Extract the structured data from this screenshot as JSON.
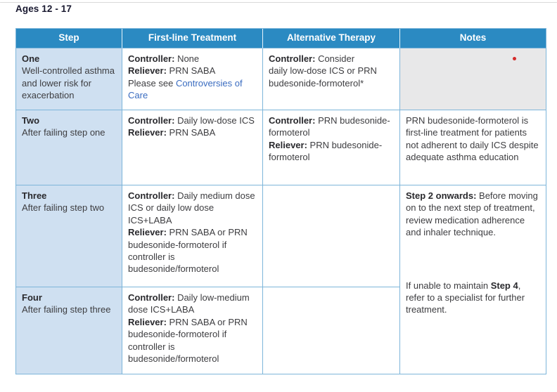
{
  "colors": {
    "header_bg": "#2b8ac2",
    "header_text": "#ffffff",
    "header_divider": "#e8f4fa",
    "step_col_bg": "#cfe0f1",
    "notes_empty_bg": "#e8e8e9",
    "border": "#7db5da",
    "text": "#3d3d40",
    "bold_text": "#29292d",
    "link": "#3a6cc0",
    "marker_red": "#d42a2a",
    "title_text": "#191930",
    "top_edge_line": "#d9d9d9"
  },
  "page": {
    "title": "Ages 12 - 17"
  },
  "table": {
    "headers": [
      "Step",
      "First-line Treatment",
      "Alternative Therapy",
      "Notes"
    ],
    "rows": [
      {
        "step_name": "One",
        "step_desc": "Well-controlled asthma and lower risk for exacerbation",
        "first_line": [
          {
            "t": "Controller:",
            "b": true
          },
          {
            "t": " None"
          },
          {
            "t": "Reliever:",
            "b": true,
            "br": true
          },
          {
            "t": " PRN SABA"
          },
          {
            "t": "Please see ",
            "br": true
          },
          {
            "t": "Controversies of Care",
            "link": true,
            "name": "controversies-of-care-link"
          }
        ],
        "alternative": [
          {
            "t": "Controller:",
            "b": true
          },
          {
            "t": " Consider"
          },
          {
            "t": "daily low-dose ICS or PRN budesonide-formoterol*",
            "br": true
          }
        ],
        "notes": ""
      },
      {
        "step_name": "Two",
        "step_desc": "After failing step one",
        "first_line": [
          {
            "t": "Controller:",
            "b": true
          },
          {
            "t": " Daily low-dose ICS"
          },
          {
            "t": "Reliever:",
            "b": true,
            "br": true
          },
          {
            "t": " PRN SABA"
          }
        ],
        "alternative": [
          {
            "t": "Controller:",
            "b": true
          },
          {
            "t": " PRN budesonide-formoterol"
          },
          {
            "t": "Reliever:",
            "b": true,
            "br": true
          },
          {
            "t": " PRN budesonide-formoterol"
          }
        ],
        "notes": "PRN budesonide-formoterol is first-line treatment for patients not adherent to daily ICS despite adequate asthma education"
      },
      {
        "step_name": "Three",
        "step_desc": "After failing step two",
        "first_line": [
          {
            "t": "Controller:",
            "b": true
          },
          {
            "t": " Daily medium dose ICS or daily low dose ICS+LABA"
          },
          {
            "t": "Reliever:",
            "b": true,
            "br": true
          },
          {
            "t": " PRN SABA or PRN budesonide-formoterol if controller is budesonide/formoterol"
          }
        ],
        "alternative": [],
        "notes_p1": [
          {
            "t": "Step 2 onwards:",
            "b": true
          },
          {
            "t": " Before moving on to the next step of treatment, review medication adherence and inhaler technique."
          }
        ],
        "notes_p2": [
          {
            "t": "If unable to maintain "
          },
          {
            "t": "Step 4",
            "b": true
          },
          {
            "t": ", refer to a specialist for further treatment."
          }
        ]
      },
      {
        "step_name": "Four",
        "step_desc": "After failing step three",
        "first_line": [
          {
            "t": "Controller:",
            "b": true
          },
          {
            "t": " Daily low-medium dose ICS+LABA"
          },
          {
            "t": "Reliever:",
            "b": true,
            "br": true
          },
          {
            "t": " PRN SABA or PRN budesonide-formoterol if controller is budesonide/formoterol"
          }
        ],
        "alternative": []
      }
    ]
  }
}
